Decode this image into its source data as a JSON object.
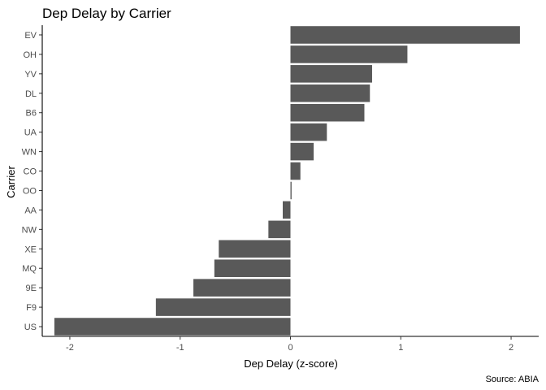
{
  "chart_data": {
    "type": "bar",
    "orientation": "horizontal",
    "title": "Dep Delay by Carrier",
    "xlabel": "Dep Delay (z-score)",
    "ylabel": "Carrier",
    "caption": "Source: ABIA",
    "xlim": [
      -2.25,
      2.25
    ],
    "xticks": [
      -2,
      -1,
      0,
      1,
      2
    ],
    "grid": false,
    "bar_color": "#595959",
    "categories": [
      "EV",
      "OH",
      "YV",
      "DL",
      "B6",
      "UA",
      "WN",
      "CO",
      "OO",
      "AA",
      "NW",
      "XE",
      "MQ",
      "9E",
      "F9",
      "US"
    ],
    "values": [
      2.08,
      1.06,
      0.74,
      0.72,
      0.67,
      0.33,
      0.21,
      0.09,
      0.01,
      -0.07,
      -0.2,
      -0.65,
      -0.69,
      -0.88,
      -1.22,
      -2.14
    ]
  }
}
